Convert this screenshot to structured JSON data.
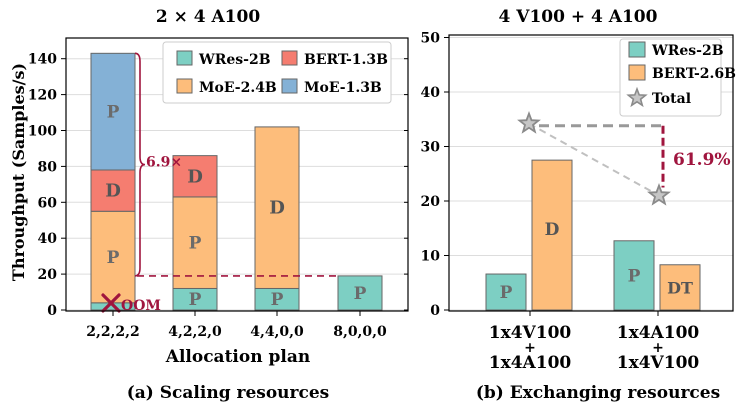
{
  "colors": {
    "wres": "#7dcfc3",
    "bert": "#f57d70",
    "moe24": "#fdbd7b",
    "moe13": "#84b1d6",
    "bert26": "#fdbd7b",
    "annotation": "#a0153e",
    "dashed": "#c0c0c0",
    "star": "#8a8a8a"
  },
  "chart_data": [
    {
      "type": "bar",
      "title": "2 × 4 A100",
      "subtitle": "(a) Scaling resources",
      "xlabel": "Allocation plan",
      "ylabel": "Throughput (Samples/s)",
      "ylim": [
        0,
        150
      ],
      "yticks": [
        0,
        20,
        40,
        60,
        80,
        100,
        120,
        140
      ],
      "categories": [
        "2,2,2,2",
        "4,2,2,0",
        "4,4,0,0",
        "8,0,0,0"
      ],
      "stacks": [
        [
          {
            "series": "WRes-2B",
            "value": 4,
            "label": ""
          },
          {
            "series": "MoE-2.4B",
            "value": 51,
            "label": "P"
          },
          {
            "series": "BERT-1.3B",
            "value": 23,
            "label": "D"
          },
          {
            "series": "MoE-1.3B",
            "value": 65,
            "label": "P"
          }
        ],
        [
          {
            "series": "WRes-2B",
            "value": 12,
            "label": "P"
          },
          {
            "series": "MoE-2.4B",
            "value": 51,
            "label": "P"
          },
          {
            "series": "BERT-1.3B",
            "value": 23,
            "label": "D"
          }
        ],
        [
          {
            "series": "WRes-2B",
            "value": 12,
            "label": "P"
          },
          {
            "series": "MoE-2.4B",
            "value": 90,
            "label": "D"
          }
        ],
        [
          {
            "series": "WRes-2B",
            "value": 19,
            "label": "P"
          }
        ]
      ],
      "legend": [
        "WRes-2B",
        "BERT-1.3B",
        "MoE-2.4B",
        "MoE-1.3B"
      ],
      "legend_position": "top-right",
      "annotations": {
        "speedup": "6.9×",
        "oom": "OOM",
        "dashed_reference": 19
      }
    },
    {
      "type": "bar",
      "title": "4 V100 + 4 A100",
      "subtitle": "(b) Exchanging resources",
      "ylim": [
        0,
        50
      ],
      "yticks": [
        0,
        10,
        20,
        30,
        40,
        50
      ],
      "groups": [
        {
          "label_top": "1x4V100",
          "label_plus": "+",
          "label_bottom": "1x4A100",
          "bars": [
            {
              "series": "WRes-2B",
              "value": 6.6,
              "label": "P"
            },
            {
              "series": "BERT-2.6B",
              "value": 27.5,
              "label": "D"
            }
          ],
          "total": 34.2
        },
        {
          "label_top": "1x4A100",
          "label_plus": "+",
          "label_bottom": "1x4V100",
          "bars": [
            {
              "series": "WRes-2B",
              "value": 12.7,
              "label": "P"
            },
            {
              "series": "BERT-2.6B",
              "value": 8.3,
              "label": "DT"
            }
          ],
          "total": 21.0
        }
      ],
      "legend": [
        "WRes-2B",
        "BERT-2.6B",
        "Total"
      ],
      "legend_position": "top-right",
      "annotations": {
        "gap_percent": "61.9%",
        "reference_total": 33.8
      }
    }
  ]
}
